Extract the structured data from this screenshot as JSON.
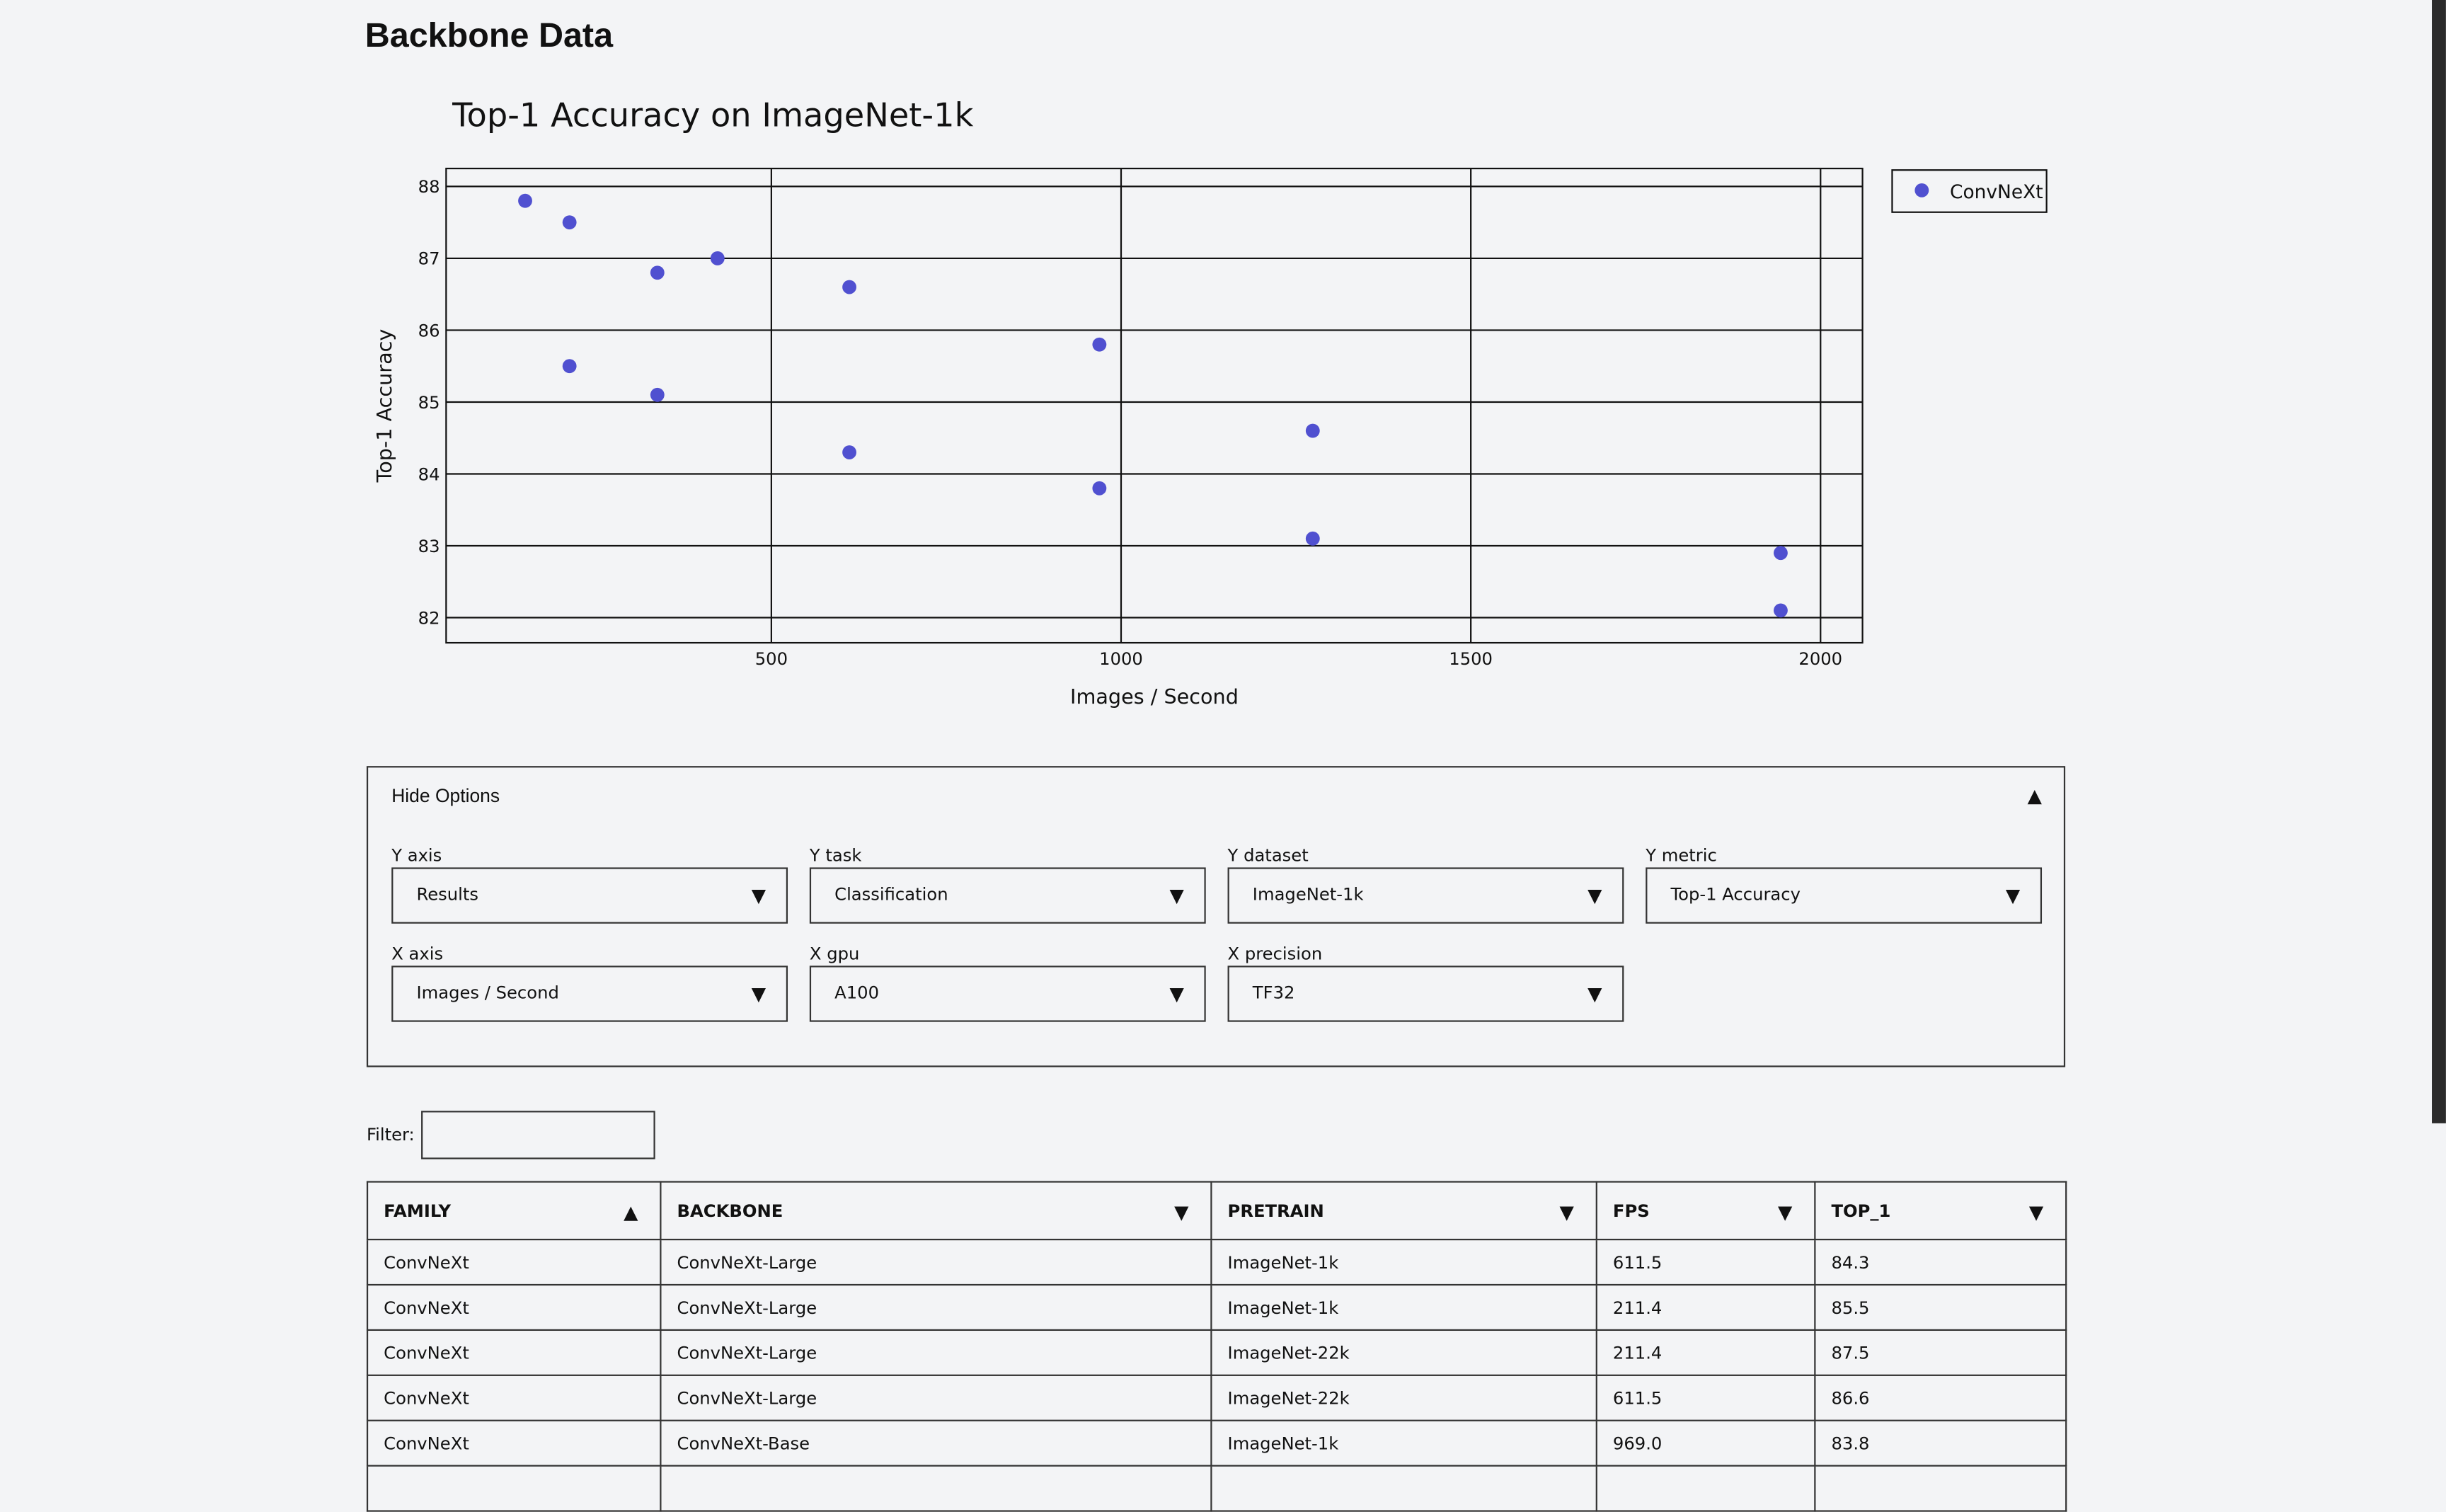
{
  "page": {
    "title": "Backbone Data"
  },
  "chart_data": {
    "type": "scatter",
    "title": "Top-1 Accuracy on ImageNet-1k",
    "xlabel": "Images / Second",
    "ylabel": "Top-1 Accuracy",
    "xlim": [
      35,
      2060
    ],
    "ylim": [
      81.65,
      88.25
    ],
    "xticks": [
      500,
      1000,
      1500,
      2000
    ],
    "yticks": [
      82,
      83,
      84,
      85,
      86,
      87,
      88
    ],
    "grid": true,
    "legend": "top-right, outside",
    "series": [
      {
        "name": "ConvNeXt",
        "color": "#5050d0",
        "points": [
          {
            "x": 148,
            "y": 87.8
          },
          {
            "x": 211.4,
            "y": 87.5
          },
          {
            "x": 211.4,
            "y": 85.5
          },
          {
            "x": 337,
            "y": 86.8
          },
          {
            "x": 337,
            "y": 85.1
          },
          {
            "x": 423,
            "y": 87.0
          },
          {
            "x": 611.5,
            "y": 86.6
          },
          {
            "x": 611.5,
            "y": 84.3
          },
          {
            "x": 969.0,
            "y": 85.8
          },
          {
            "x": 969.0,
            "y": 83.8
          },
          {
            "x": 1274,
            "y": 84.6
          },
          {
            "x": 1274,
            "y": 83.1
          },
          {
            "x": 1943,
            "y": 82.9
          },
          {
            "x": 1943,
            "y": 82.1
          }
        ]
      }
    ]
  },
  "options": {
    "toggle_label": "Hide Options",
    "toggle_icon": "▲",
    "caret": "▼",
    "fields": [
      {
        "label": "Y axis",
        "value": "Results"
      },
      {
        "label": "Y task",
        "value": "Classification"
      },
      {
        "label": "Y dataset",
        "value": "ImageNet-1k"
      },
      {
        "label": "Y metric",
        "value": "Top-1 Accuracy"
      },
      {
        "label": "X axis",
        "value": "Images / Second"
      },
      {
        "label": "X gpu",
        "value": "A100"
      },
      {
        "label": "X precision",
        "value": "TF32"
      }
    ]
  },
  "filter": {
    "label": "Filter:",
    "value": ""
  },
  "table": {
    "columns": [
      {
        "label": "FAMILY",
        "sort_icon": "▲"
      },
      {
        "label": "BACKBONE",
        "sort_icon": "▼"
      },
      {
        "label": "PRETRAIN",
        "sort_icon": "▼"
      },
      {
        "label": "FPS",
        "sort_icon": "▼"
      },
      {
        "label": "TOP_1",
        "sort_icon": "▼"
      }
    ],
    "rows": [
      [
        "ConvNeXt",
        "ConvNeXt-Large",
        "ImageNet-1k",
        "611.5",
        "84.3"
      ],
      [
        "ConvNeXt",
        "ConvNeXt-Large",
        "ImageNet-1k",
        "211.4",
        "85.5"
      ],
      [
        "ConvNeXt",
        "ConvNeXt-Large",
        "ImageNet-22k",
        "211.4",
        "87.5"
      ],
      [
        "ConvNeXt",
        "ConvNeXt-Large",
        "ImageNet-22k",
        "611.5",
        "86.6"
      ],
      [
        "ConvNeXt",
        "ConvNeXt-Base",
        "ImageNet-1k",
        "969.0",
        "83.8"
      ]
    ]
  }
}
